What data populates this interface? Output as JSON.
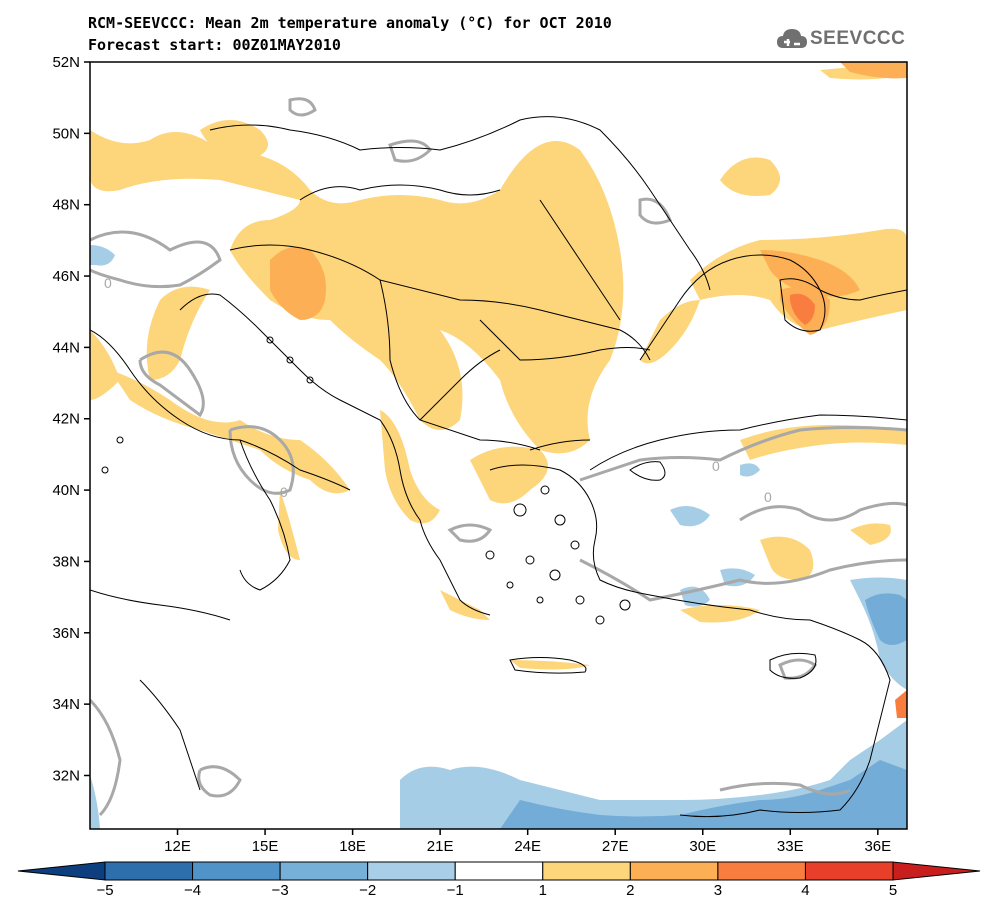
{
  "title": {
    "line1": "RCM-SEEVCCC: Mean 2m temperature anomaly (°C) for OCT 2010",
    "line2": "Forecast start: 00Z01MAY2010"
  },
  "logo": {
    "text": "SEEVCCC",
    "icon": "cloud-icon"
  },
  "map": {
    "lat_labels": [
      "52N",
      "50N",
      "48N",
      "46N",
      "44N",
      "42N",
      "40N",
      "38N",
      "36N",
      "34N",
      "32N"
    ],
    "lon_labels": [
      "12E",
      "15E",
      "18E",
      "21E",
      "24E",
      "27E",
      "30E",
      "33E",
      "36E"
    ],
    "lat_range": [
      30.5,
      52
    ],
    "lon_range": [
      9,
      37
    ],
    "contour_labels": [
      "0",
      "0",
      "0",
      "0"
    ],
    "colors": {
      "warm1": "#fdd57a",
      "warm2": "#fdaf55",
      "warm3": "#f97d3f",
      "cool1": "#a6cde6",
      "cool2": "#73acd6",
      "contour": "#a8a8a8"
    }
  },
  "colorbar": {
    "labels": [
      "−5",
      "−4",
      "−3",
      "−2",
      "−1",
      "1",
      "2",
      "3",
      "4",
      "5"
    ],
    "colors": [
      "#0d3e7e",
      "#2d6fad",
      "#4f93c8",
      "#76b0d9",
      "#a9cfe8",
      "#ffffff",
      "#fdd57a",
      "#fdaf55",
      "#f97d3f",
      "#e83f2a",
      "#c81e1e"
    ]
  }
}
